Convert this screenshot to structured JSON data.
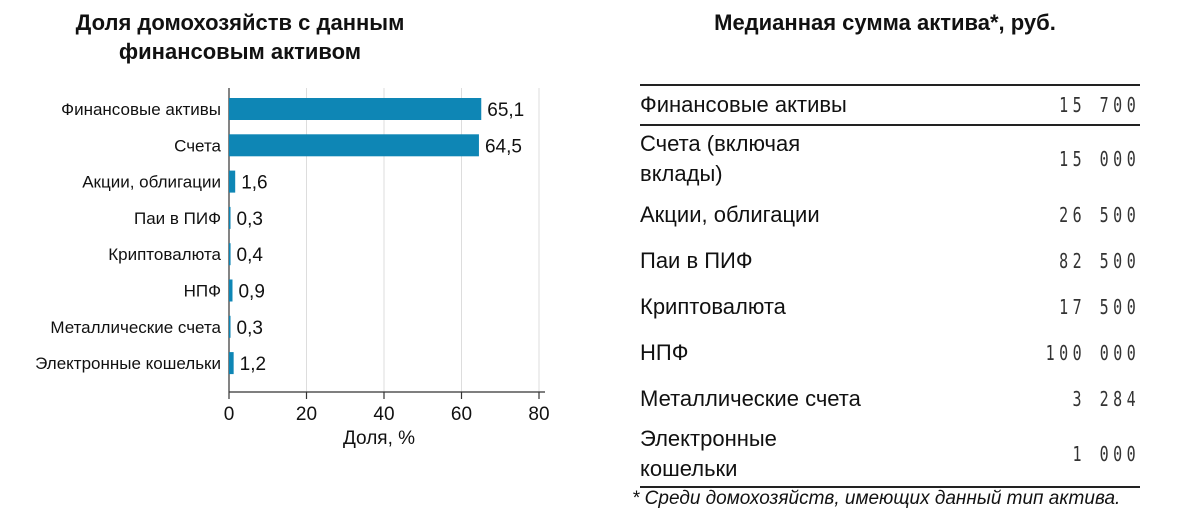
{
  "left": {
    "title": "Доля домохозяйств с данным финансовым активом"
  },
  "chart_data": {
    "type": "bar",
    "orientation": "horizontal",
    "title": "Доля домохозяйств с данным финансовым активом",
    "categories": [
      "Финансовые активы",
      "Счета",
      "Акции, облигации",
      "Паи в ПИФ",
      "Криптовалюта",
      "НПФ",
      "Металлические счета",
      "Электронные кошельки"
    ],
    "values": [
      65.1,
      64.5,
      1.6,
      0.3,
      0.4,
      0.9,
      0.3,
      1.2
    ],
    "value_labels": [
      "65,1",
      "64,5",
      "1,6",
      "0,3",
      "0,4",
      "0,9",
      "0,3",
      "1,2"
    ],
    "xlabel": "Доля, %",
    "ylabel": "",
    "xlim": [
      0,
      80
    ],
    "xticks": [
      0,
      20,
      40,
      60,
      80
    ],
    "grid": true,
    "bar_color": "#0e86b5"
  },
  "right": {
    "title": "Медианная сумма актива*, руб.",
    "rows": [
      {
        "name": "Финансовые активы",
        "value": "15 700"
      },
      {
        "name": "Счета (включая вклады)",
        "value": "15 000"
      },
      {
        "name": "Акции, облигации",
        "value": "26 500"
      },
      {
        "name": "Паи в ПИФ",
        "value": "82 500"
      },
      {
        "name": "Криптовалюта",
        "value": "17 500"
      },
      {
        "name": "НПФ",
        "value": "100 000"
      },
      {
        "name": "Металлические счета",
        "value": "3 284"
      },
      {
        "name": "Электронные кошельки",
        "value": "1 000"
      }
    ],
    "footnote": "* Среди домохозяйств, имеющих данный тип актива."
  }
}
